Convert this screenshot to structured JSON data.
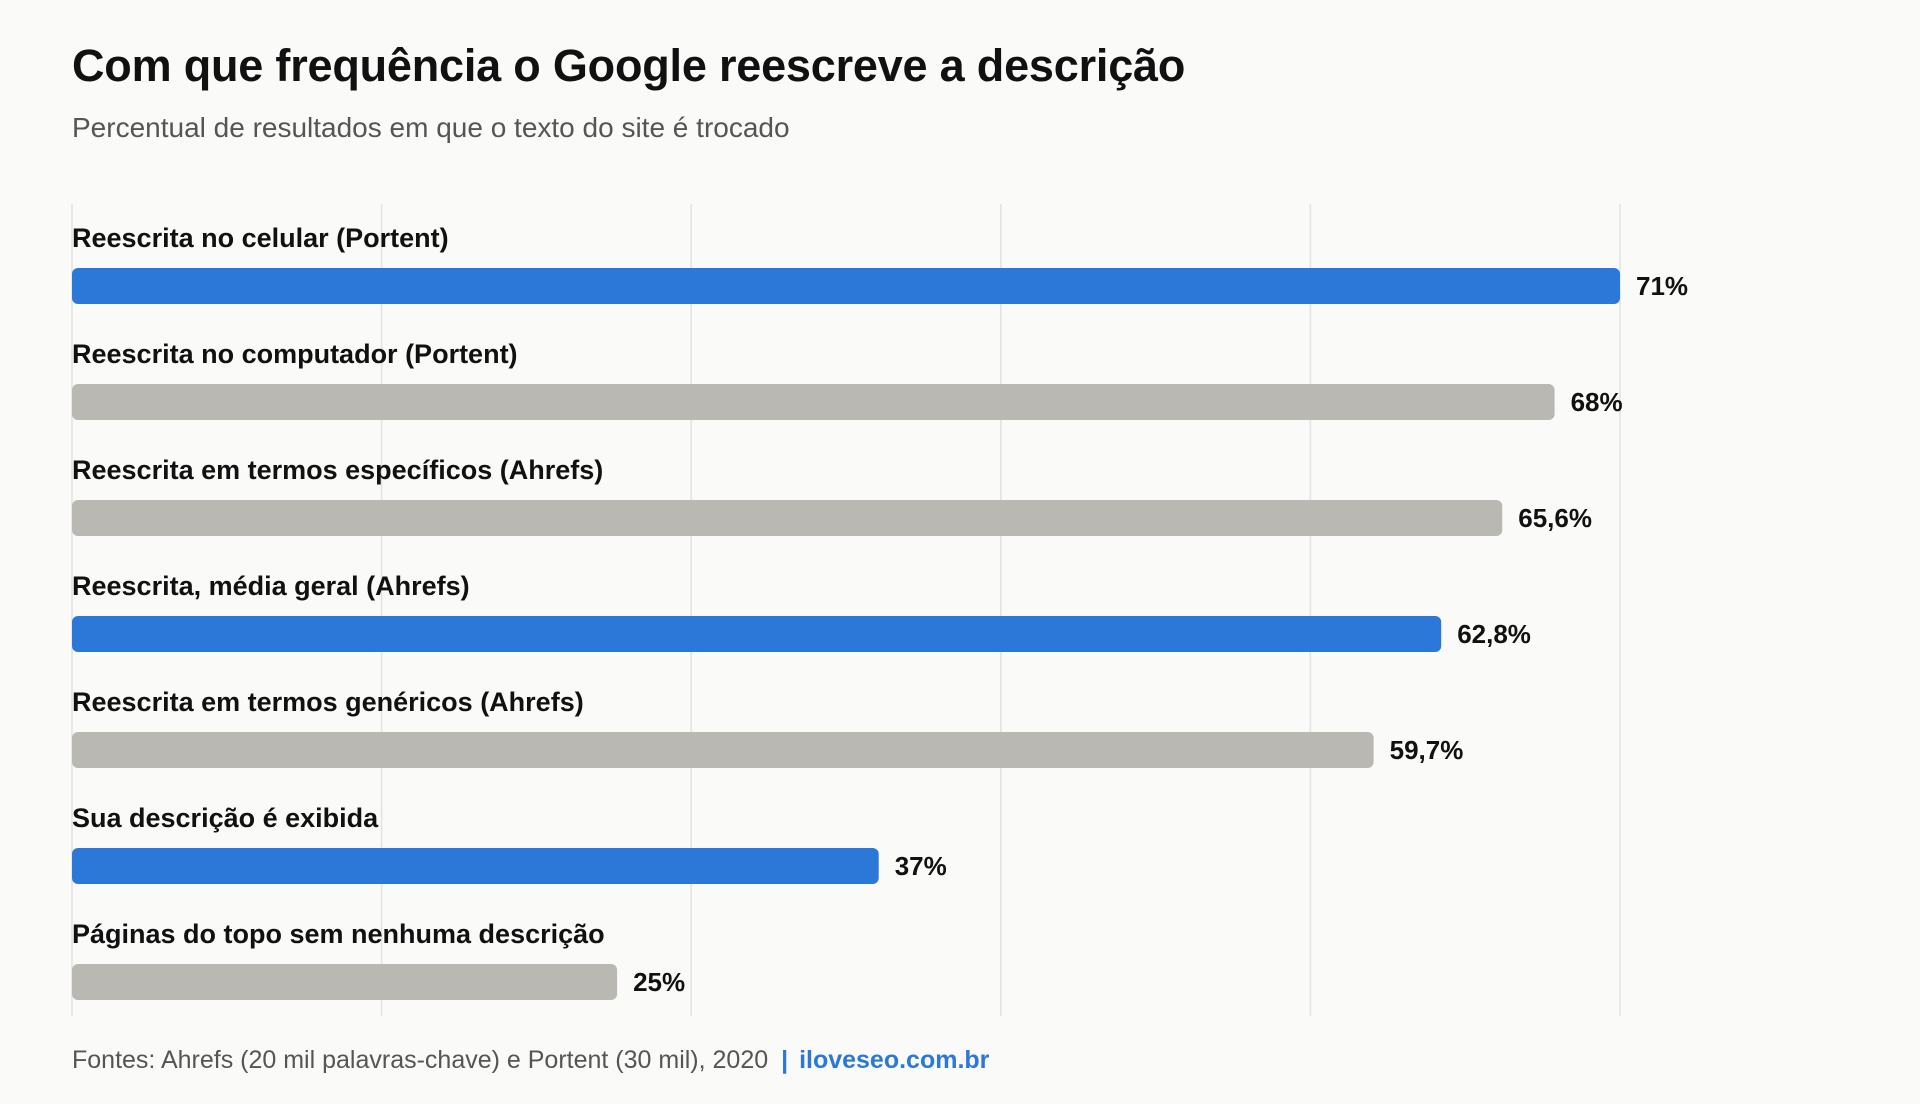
{
  "header": {
    "title": "Com que frequência o Google reescreve a descrição",
    "subtitle": "Percentual de resultados em que o texto do site é trocado"
  },
  "footer": {
    "source": "Fontes: Ahrefs (20 mil palavras-chave) e Portent (30 mil), 2020",
    "separator": "|",
    "site": "iloveseo.com.br"
  },
  "colors": {
    "highlight": "#2b78d8",
    "default": "#b9b8b3",
    "grid": "#e2e2e0",
    "text": "#111111"
  },
  "chart_data": {
    "type": "bar",
    "orientation": "horizontal",
    "title": "Com que frequência o Google reescreve a descrição",
    "subtitle": "Percentual de resultados em que o texto do site é trocado",
    "xlabel": "",
    "ylabel": "",
    "xlim": [
      0,
      71
    ],
    "grid": true,
    "legend": "none",
    "categories": [
      "Reescrita no celular (Portent)",
      "Reescrita no computador (Portent)",
      "Reescrita em termos específicos (Ahrefs)",
      "Reescrita, média geral (Ahrefs)",
      "Reescrita em termos genéricos (Ahrefs)",
      "Sua descrição é exibida",
      "Páginas do topo sem nenhuma descrição"
    ],
    "values": [
      71,
      68,
      65.6,
      62.8,
      59.7,
      37,
      25
    ],
    "value_labels": [
      "71%",
      "68%",
      "65,6%",
      "62,8%",
      "59,7%",
      "37%",
      "25%"
    ],
    "highlighted": [
      true,
      false,
      false,
      true,
      false,
      true,
      false
    ]
  }
}
